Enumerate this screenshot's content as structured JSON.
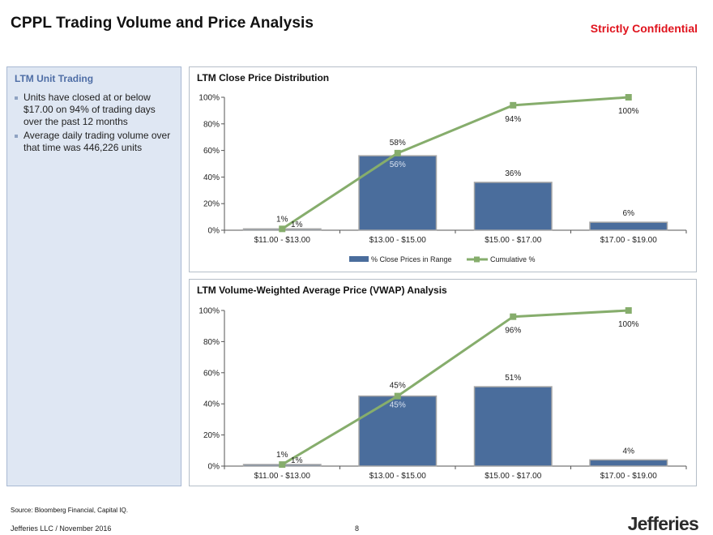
{
  "header": {
    "title": "CPPL Trading Volume and Price Analysis",
    "confidential": "Strictly Confidential"
  },
  "sidebar": {
    "heading": "LTM Unit Trading",
    "bullets": [
      "Units have closed at or below $17.00 on 94% of trading days over the past 12 months",
      "Average daily trading volume over that time was 446,226 units"
    ]
  },
  "chart_data": [
    {
      "type": "bar",
      "title": "LTM Close Price Distribution",
      "categories": [
        "$11.00 - $13.00",
        "$13.00 - $15.00",
        "$15.00 - $17.00",
        "$17.00 - $19.00"
      ],
      "series": [
        {
          "name": "% Close Prices in Range",
          "type": "bar",
          "values": [
            1,
            56,
            36,
            6
          ],
          "labels": [
            "1%",
            "56%",
            "36%",
            "6%"
          ]
        },
        {
          "name": "Cumulative %",
          "type": "line",
          "values": [
            1,
            58,
            94,
            100
          ],
          "labels": [
            "1%",
            "58%",
            "94%",
            "100%"
          ]
        }
      ],
      "yticks": [
        "0%",
        "20%",
        "40%",
        "60%",
        "80%",
        "100%"
      ],
      "ylim": [
        0,
        100
      ],
      "legend": "bottom",
      "grid": false
    },
    {
      "type": "bar",
      "title": "LTM Volume-Weighted Average Price (VWAP) Analysis",
      "categories": [
        "$11.00 - $13.00",
        "$13.00 - $15.00",
        "$15.00 - $17.00",
        "$17.00 - $19.00"
      ],
      "series": [
        {
          "type": "bar",
          "values": [
            1,
            45,
            51,
            4
          ],
          "labels": [
            "1%",
            "45%",
            "51%",
            "4%"
          ]
        },
        {
          "type": "line",
          "values": [
            1,
            45,
            96,
            100
          ],
          "labels": [
            "1%",
            "45%",
            "96%",
            "100%"
          ]
        }
      ],
      "yticks": [
        "0%",
        "20%",
        "40%",
        "60%",
        "80%",
        "100%"
      ],
      "ylim": [
        0,
        100
      ],
      "grid": false
    }
  ],
  "colors": {
    "bar": "#4a6d9c",
    "bar_outline": "#a6a6a6",
    "line": "#86ad6c",
    "title": "#111111",
    "confidential": "#e0141e"
  },
  "footer": {
    "source": "Source: Bloomberg Financial, Capital IQ.",
    "left": "Jefferies LLC / November 2016",
    "page": "8",
    "logo": "Jefferies"
  }
}
